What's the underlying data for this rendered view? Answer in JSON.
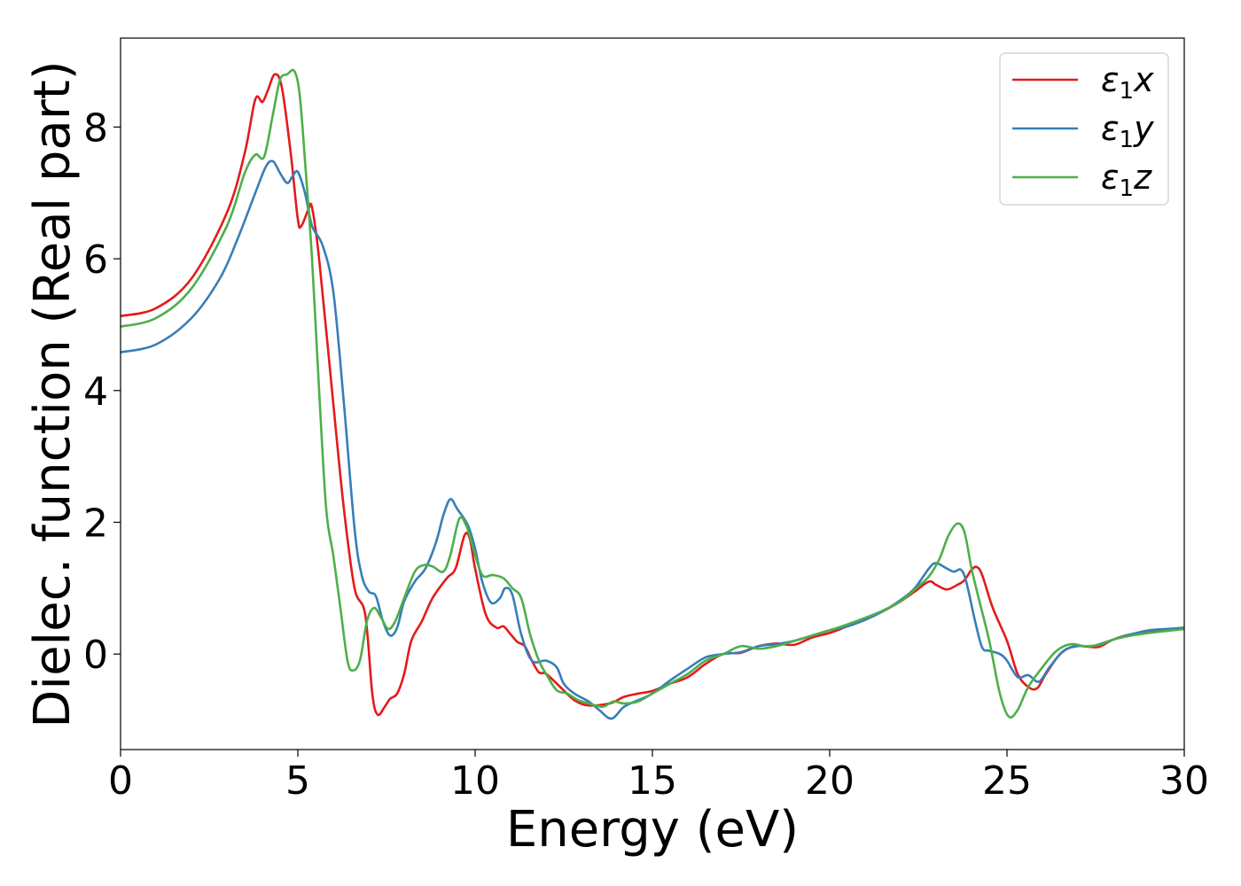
{
  "chart_data": {
    "type": "line",
    "xlabel": "Energy (eV)",
    "ylabel": "Dielec. function (Real part)",
    "xlim": [
      0,
      30
    ],
    "ylim": [
      -1.45,
      9.35
    ],
    "xticks": [
      0,
      5,
      10,
      15,
      20,
      25,
      30
    ],
    "yticks": [
      0,
      2,
      4,
      6,
      8
    ],
    "grid": false,
    "legend_position": "top-right",
    "series": [
      {
        "name": "ε₁x",
        "legend_base": "ε",
        "legend_sub": "1",
        "legend_suffix": "x",
        "color": "#e41a1c",
        "points": [
          [
            0,
            5.13
          ],
          [
            1,
            5.25
          ],
          [
            2,
            5.7
          ],
          [
            3,
            6.7
          ],
          [
            3.5,
            7.6
          ],
          [
            3.8,
            8.42
          ],
          [
            4.0,
            8.38
          ],
          [
            4.15,
            8.55
          ],
          [
            4.35,
            8.8
          ],
          [
            4.55,
            8.6
          ],
          [
            4.8,
            7.6
          ],
          [
            5.0,
            6.6
          ],
          [
            5.1,
            6.5
          ],
          [
            5.3,
            6.75
          ],
          [
            5.4,
            6.78
          ],
          [
            5.6,
            6.0
          ],
          [
            6.0,
            3.8
          ],
          [
            6.3,
            2.2
          ],
          [
            6.6,
            1.0
          ],
          [
            6.9,
            0.6
          ],
          [
            7.1,
            -0.6
          ],
          [
            7.25,
            -0.92
          ],
          [
            7.45,
            -0.8
          ],
          [
            7.6,
            -0.68
          ],
          [
            7.8,
            -0.6
          ],
          [
            8.0,
            -0.3
          ],
          [
            8.2,
            0.2
          ],
          [
            8.5,
            0.5
          ],
          [
            8.8,
            0.85
          ],
          [
            9.2,
            1.15
          ],
          [
            9.45,
            1.3
          ],
          [
            9.7,
            1.8
          ],
          [
            9.85,
            1.75
          ],
          [
            10.0,
            1.3
          ],
          [
            10.3,
            0.6
          ],
          [
            10.6,
            0.4
          ],
          [
            10.8,
            0.42
          ],
          [
            11.0,
            0.3
          ],
          [
            11.2,
            0.18
          ],
          [
            11.4,
            0.12
          ],
          [
            11.6,
            -0.1
          ],
          [
            11.8,
            -0.28
          ],
          [
            12.0,
            -0.3
          ],
          [
            12.4,
            -0.5
          ],
          [
            12.8,
            -0.7
          ],
          [
            13.2,
            -0.78
          ],
          [
            13.8,
            -0.75
          ],
          [
            14.2,
            -0.65
          ],
          [
            14.6,
            -0.6
          ],
          [
            15.0,
            -0.56
          ],
          [
            15.5,
            -0.45
          ],
          [
            16,
            -0.35
          ],
          [
            16.5,
            -0.15
          ],
          [
            17,
            0.0
          ],
          [
            17.5,
            0.02
          ],
          [
            18,
            0.12
          ],
          [
            18.5,
            0.16
          ],
          [
            19,
            0.14
          ],
          [
            19.5,
            0.25
          ],
          [
            20,
            0.32
          ],
          [
            20.5,
            0.42
          ],
          [
            21,
            0.52
          ],
          [
            21.5,
            0.65
          ],
          [
            22,
            0.8
          ],
          [
            22.4,
            0.95
          ],
          [
            22.8,
            1.1
          ],
          [
            23.0,
            1.05
          ],
          [
            23.3,
            0.98
          ],
          [
            23.6,
            1.05
          ],
          [
            23.8,
            1.12
          ],
          [
            24.0,
            1.28
          ],
          [
            24.15,
            1.32
          ],
          [
            24.3,
            1.2
          ],
          [
            24.6,
            0.7
          ],
          [
            25.0,
            0.2
          ],
          [
            25.3,
            -0.3
          ],
          [
            25.6,
            -0.5
          ],
          [
            25.85,
            -0.52
          ],
          [
            26.1,
            -0.3
          ],
          [
            26.5,
            0.0
          ],
          [
            26.9,
            0.12
          ],
          [
            27.3,
            0.11
          ],
          [
            27.6,
            0.11
          ],
          [
            28.0,
            0.22
          ],
          [
            28.5,
            0.3
          ],
          [
            29,
            0.33
          ],
          [
            29.5,
            0.36
          ],
          [
            30,
            0.4
          ]
        ]
      },
      {
        "name": "ε₁y",
        "legend_base": "ε",
        "legend_sub": "1",
        "legend_suffix": "y",
        "color": "#377eb8",
        "points": [
          [
            0,
            4.58
          ],
          [
            1,
            4.7
          ],
          [
            2,
            5.1
          ],
          [
            2.8,
            5.7
          ],
          [
            3.3,
            6.3
          ],
          [
            3.8,
            7.0
          ],
          [
            4.1,
            7.4
          ],
          [
            4.3,
            7.48
          ],
          [
            4.5,
            7.3
          ],
          [
            4.7,
            7.15
          ],
          [
            4.85,
            7.25
          ],
          [
            5.0,
            7.32
          ],
          [
            5.2,
            7.0
          ],
          [
            5.4,
            6.5
          ],
          [
            5.7,
            6.2
          ],
          [
            6.0,
            5.5
          ],
          [
            6.3,
            3.8
          ],
          [
            6.6,
            1.9
          ],
          [
            6.8,
            1.2
          ],
          [
            7.0,
            0.95
          ],
          [
            7.2,
            0.88
          ],
          [
            7.4,
            0.5
          ],
          [
            7.6,
            0.28
          ],
          [
            7.8,
            0.4
          ],
          [
            8.0,
            0.8
          ],
          [
            8.3,
            1.1
          ],
          [
            8.6,
            1.3
          ],
          [
            8.9,
            1.7
          ],
          [
            9.1,
            2.1
          ],
          [
            9.3,
            2.35
          ],
          [
            9.5,
            2.2
          ],
          [
            9.8,
            1.95
          ],
          [
            10.0,
            1.6
          ],
          [
            10.2,
            1.1
          ],
          [
            10.45,
            0.78
          ],
          [
            10.7,
            0.85
          ],
          [
            10.85,
            1.0
          ],
          [
            11.05,
            0.9
          ],
          [
            11.3,
            0.3
          ],
          [
            11.6,
            -0.1
          ],
          [
            12.0,
            -0.1
          ],
          [
            12.3,
            -0.2
          ],
          [
            12.5,
            -0.45
          ],
          [
            12.8,
            -0.6
          ],
          [
            13.2,
            -0.72
          ],
          [
            13.5,
            -0.85
          ],
          [
            13.85,
            -0.98
          ],
          [
            14.2,
            -0.8
          ],
          [
            14.6,
            -0.7
          ],
          [
            15.0,
            -0.6
          ],
          [
            15.5,
            -0.4
          ],
          [
            16,
            -0.22
          ],
          [
            16.5,
            -0.05
          ],
          [
            17,
            0.0
          ],
          [
            17.5,
            0.03
          ],
          [
            18,
            0.12
          ],
          [
            18.5,
            0.15
          ],
          [
            19,
            0.2
          ],
          [
            19.5,
            0.28
          ],
          [
            20,
            0.36
          ],
          [
            20.5,
            0.42
          ],
          [
            21,
            0.52
          ],
          [
            21.5,
            0.65
          ],
          [
            22,
            0.82
          ],
          [
            22.4,
            1.0
          ],
          [
            22.8,
            1.3
          ],
          [
            23.0,
            1.38
          ],
          [
            23.3,
            1.3
          ],
          [
            23.5,
            1.25
          ],
          [
            23.7,
            1.28
          ],
          [
            23.85,
            1.1
          ],
          [
            24.1,
            0.5
          ],
          [
            24.3,
            0.1
          ],
          [
            24.5,
            0.05
          ],
          [
            24.8,
            0.0
          ],
          [
            25.0,
            -0.1
          ],
          [
            25.3,
            -0.35
          ],
          [
            25.6,
            -0.32
          ],
          [
            25.9,
            -0.42
          ],
          [
            26.2,
            -0.2
          ],
          [
            26.6,
            0.05
          ],
          [
            27.0,
            0.12
          ],
          [
            27.4,
            0.12
          ],
          [
            28.0,
            0.22
          ],
          [
            28.5,
            0.3
          ],
          [
            29,
            0.36
          ],
          [
            29.5,
            0.38
          ],
          [
            30,
            0.4
          ]
        ]
      },
      {
        "name": "ε₁z",
        "legend_base": "ε",
        "legend_sub": "1",
        "legend_suffix": "z",
        "color": "#4daf4a",
        "points": [
          [
            0,
            4.97
          ],
          [
            1,
            5.1
          ],
          [
            2,
            5.55
          ],
          [
            3,
            6.5
          ],
          [
            3.5,
            7.3
          ],
          [
            3.8,
            7.58
          ],
          [
            4.05,
            7.55
          ],
          [
            4.3,
            8.2
          ],
          [
            4.5,
            8.72
          ],
          [
            4.7,
            8.8
          ],
          [
            4.9,
            8.85
          ],
          [
            5.05,
            8.5
          ],
          [
            5.2,
            7.5
          ],
          [
            5.4,
            6.0
          ],
          [
            5.6,
            4.0
          ],
          [
            5.8,
            2.2
          ],
          [
            6.0,
            1.5
          ],
          [
            6.2,
            0.7
          ],
          [
            6.4,
            -0.1
          ],
          [
            6.55,
            -0.25
          ],
          [
            6.75,
            -0.1
          ],
          [
            6.95,
            0.5
          ],
          [
            7.15,
            0.7
          ],
          [
            7.35,
            0.55
          ],
          [
            7.55,
            0.38
          ],
          [
            7.75,
            0.5
          ],
          [
            8.0,
            0.85
          ],
          [
            8.3,
            1.25
          ],
          [
            8.55,
            1.35
          ],
          [
            8.8,
            1.33
          ],
          [
            9.1,
            1.25
          ],
          [
            9.3,
            1.5
          ],
          [
            9.55,
            2.05
          ],
          [
            9.75,
            1.95
          ],
          [
            9.95,
            1.6
          ],
          [
            10.2,
            1.2
          ],
          [
            10.5,
            1.2
          ],
          [
            10.8,
            1.15
          ],
          [
            11.05,
            1.0
          ],
          [
            11.3,
            0.85
          ],
          [
            11.55,
            0.3
          ],
          [
            11.8,
            -0.1
          ],
          [
            12.0,
            -0.3
          ],
          [
            12.3,
            -0.55
          ],
          [
            12.6,
            -0.6
          ],
          [
            12.9,
            -0.7
          ],
          [
            13.2,
            -0.75
          ],
          [
            13.6,
            -0.8
          ],
          [
            13.9,
            -0.72
          ],
          [
            14.2,
            -0.75
          ],
          [
            14.6,
            -0.72
          ],
          [
            15.0,
            -0.6
          ],
          [
            15.5,
            -0.45
          ],
          [
            16,
            -0.3
          ],
          [
            16.5,
            -0.1
          ],
          [
            17,
            0.0
          ],
          [
            17.5,
            0.12
          ],
          [
            18,
            0.08
          ],
          [
            18.5,
            0.12
          ],
          [
            19,
            0.2
          ],
          [
            19.5,
            0.28
          ],
          [
            20,
            0.36
          ],
          [
            20.5,
            0.45
          ],
          [
            21,
            0.55
          ],
          [
            21.5,
            0.66
          ],
          [
            22,
            0.8
          ],
          [
            22.4,
            0.98
          ],
          [
            22.8,
            1.18
          ],
          [
            23.1,
            1.45
          ],
          [
            23.35,
            1.8
          ],
          [
            23.6,
            1.98
          ],
          [
            23.8,
            1.85
          ],
          [
            24.0,
            1.3
          ],
          [
            24.2,
            0.85
          ],
          [
            24.5,
            0.2
          ],
          [
            24.8,
            -0.6
          ],
          [
            25.05,
            -0.95
          ],
          [
            25.3,
            -0.85
          ],
          [
            25.6,
            -0.5
          ],
          [
            26.0,
            -0.2
          ],
          [
            26.4,
            0.05
          ],
          [
            26.8,
            0.15
          ],
          [
            27.2,
            0.12
          ],
          [
            27.6,
            0.14
          ],
          [
            28.0,
            0.22
          ],
          [
            28.5,
            0.28
          ],
          [
            29,
            0.32
          ],
          [
            29.5,
            0.35
          ],
          [
            30,
            0.38
          ]
        ]
      }
    ]
  }
}
